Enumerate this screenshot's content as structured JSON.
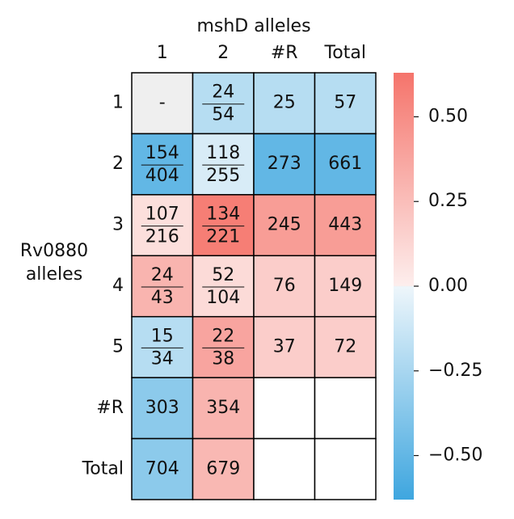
{
  "chart_data": {
    "type": "heatmap",
    "title": "mshD alleles",
    "ylabel": [
      "Rv0880",
      "alleles"
    ],
    "xcategories": [
      "1",
      "2",
      "#R",
      "Total"
    ],
    "ycategories": [
      "1",
      "2",
      "3",
      "4",
      "5",
      "#R",
      "Total"
    ],
    "cells": [
      [
        {
          "label": "-",
          "value": 0
        },
        {
          "label": {
            "numerator": 24,
            "denominator": 54
          },
          "value": -0.2
        },
        {
          "label": 25,
          "value": -0.2
        },
        {
          "label": 57,
          "value": -0.2
        }
      ],
      [
        {
          "label": {
            "numerator": 154,
            "denominator": 404
          },
          "value": -0.5
        },
        {
          "label": {
            "numerator": 118,
            "denominator": 255
          },
          "value": -0.08
        },
        {
          "label": 273,
          "value": -0.5
        },
        {
          "label": 661,
          "value": -0.5
        }
      ],
      [
        {
          "label": {
            "numerator": 107,
            "denominator": 216
          },
          "value": 0.08
        },
        {
          "label": {
            "numerator": 134,
            "denominator": 221
          },
          "value": 0.58
        },
        {
          "label": 245,
          "value": 0.42
        },
        {
          "label": 443,
          "value": 0.42
        }
      ],
      [
        {
          "label": {
            "numerator": 24,
            "denominator": 43
          },
          "value": 0.3
        },
        {
          "label": {
            "numerator": 52,
            "denominator": 104
          },
          "value": 0.1
        },
        {
          "label": 76,
          "value": 0.17
        },
        {
          "label": 149,
          "value": 0.17
        }
      ],
      [
        {
          "label": {
            "numerator": 15,
            "denominator": 34
          },
          "value": -0.2
        },
        {
          "label": {
            "numerator": 22,
            "denominator": 38
          },
          "value": 0.38
        },
        {
          "label": 37,
          "value": 0.17
        },
        {
          "label": 72,
          "value": 0.17
        }
      ],
      [
        {
          "label": 303,
          "value": -0.35
        },
        {
          "label": 354,
          "value": 0.3
        },
        {
          "label": null,
          "value": null
        },
        {
          "label": null,
          "value": null
        }
      ],
      [
        {
          "label": 704,
          "value": -0.35
        },
        {
          "label": 679,
          "value": 0.28
        },
        {
          "label": null,
          "value": null
        },
        {
          "label": null,
          "value": null
        }
      ]
    ],
    "clim": [
      -0.63,
      0.63
    ],
    "cticks": [
      {
        "value": 0.5,
        "label": "0.50"
      },
      {
        "value": 0.25,
        "label": "0.25"
      },
      {
        "value": 0,
        "label": "0.00"
      },
      {
        "value": -0.25,
        "label": "−0.25"
      },
      {
        "value": -0.5,
        "label": "−0.50"
      }
    ],
    "colormap": {
      "negative": "#3ea6df",
      "zero": "#efefef",
      "positive": "#f5746b"
    }
  }
}
